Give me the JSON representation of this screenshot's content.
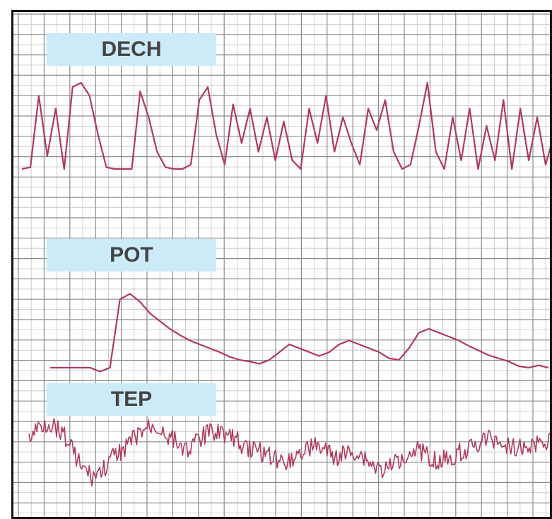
{
  "colors": {
    "trace": "#b03a5b",
    "grid_major": "#8c8c8c",
    "grid_minor": "#c4c4c4",
    "label_bg": "#cdeaf8",
    "label_text": "#444444"
  },
  "chart_data": {
    "type": "line",
    "grid": true,
    "series": [
      {
        "name": "DECH",
        "values": [
          0.0,
          0.02,
          0.85,
          0.15,
          0.7,
          0.0,
          0.95,
          1.0,
          0.85,
          0.4,
          0.02,
          0.0,
          0.0,
          0.0,
          0.9,
          0.6,
          0.2,
          0.02,
          0.0,
          0.0,
          0.05,
          0.8,
          0.95,
          0.4,
          0.05,
          0.75,
          0.3,
          0.7,
          0.2,
          0.6,
          0.1,
          0.55,
          0.1,
          0.0,
          0.7,
          0.3,
          0.85,
          0.2,
          0.6,
          0.3,
          0.05,
          0.7,
          0.45,
          0.8,
          0.2,
          0.0,
          0.05,
          0.5,
          1.0,
          0.2,
          0.0,
          0.6,
          0.1,
          0.7,
          0.0,
          0.5,
          0.1,
          0.8,
          0.0,
          0.7,
          0.1,
          0.6,
          0.05,
          0.4
        ]
      },
      {
        "name": "POT",
        "values": [
          0.0,
          0.0,
          0.0,
          0.0,
          0.0,
          -0.05,
          0.0,
          0.88,
          0.95,
          0.85,
          0.7,
          0.6,
          0.5,
          0.42,
          0.35,
          0.3,
          0.25,
          0.2,
          0.14,
          0.1,
          0.08,
          0.05,
          0.1,
          0.2,
          0.3,
          0.25,
          0.2,
          0.15,
          0.2,
          0.3,
          0.35,
          0.3,
          0.25,
          0.2,
          0.12,
          0.1,
          0.25,
          0.45,
          0.5,
          0.45,
          0.4,
          0.35,
          0.28,
          0.22,
          0.16,
          0.12,
          0.08,
          0.02,
          0.0,
          0.03,
          0.0
        ]
      },
      {
        "name": "TEP",
        "values": [
          0.4,
          0.8,
          0.9,
          0.7,
          0.2,
          -0.5,
          -0.8,
          -0.6,
          -0.2,
          0.1,
          0.4,
          0.7,
          0.8,
          0.6,
          0.3,
          0.1,
          0.3,
          0.6,
          0.7,
          0.5,
          0.3,
          0.1,
          0.0,
          -0.1,
          -0.3,
          -0.2,
          0.0,
          0.2,
          0.1,
          -0.2,
          -0.1,
          0.0,
          -0.2,
          -0.5,
          -0.6,
          -0.3,
          0.0,
          0.1,
          -0.1,
          -0.3,
          -0.2,
          0.0,
          0.1,
          0.3,
          0.4,
          0.3,
          0.2,
          0.1,
          0.2,
          0.3,
          0.4
        ]
      }
    ]
  }
}
